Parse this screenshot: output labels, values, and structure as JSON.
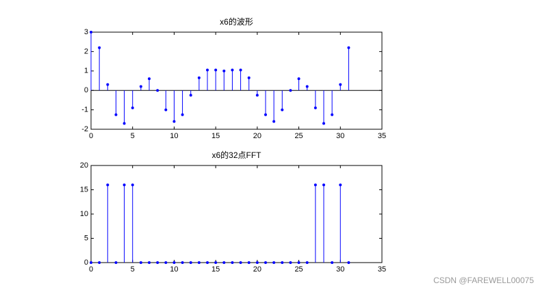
{
  "chart_data": [
    {
      "type": "stem",
      "title": "x6的波形",
      "color": "#0000ff",
      "x": [
        0,
        1,
        2,
        3,
        4,
        5,
        6,
        7,
        8,
        9,
        10,
        11,
        12,
        13,
        14,
        15,
        16,
        17,
        18,
        19,
        20,
        21,
        22,
        23,
        24,
        25,
        26,
        27,
        28,
        29,
        30,
        31
      ],
      "values": [
        3,
        2.2,
        0.3,
        -1.25,
        -1.7,
        -0.9,
        0.2,
        0.6,
        0,
        -1.0,
        -1.6,
        -1.25,
        -0.25,
        0.65,
        1.05,
        1.05,
        1.0,
        1.05,
        1.05,
        0.65,
        -0.25,
        -1.25,
        -1.6,
        -1.0,
        0,
        0.6,
        0.2,
        -0.9,
        -1.7,
        -1.25,
        0.3,
        2.2
      ],
      "xlim": [
        0,
        35
      ],
      "xticks": [
        0,
        5,
        10,
        15,
        20,
        25,
        30,
        35
      ],
      "ylim": [
        -2,
        3
      ],
      "yticks": [
        -2,
        -1,
        0,
        1,
        2,
        3
      ]
    },
    {
      "type": "stem",
      "title": "x6的32点FFT",
      "color": "#0000ff",
      "x": [
        0,
        1,
        2,
        3,
        4,
        5,
        6,
        7,
        8,
        9,
        10,
        11,
        12,
        13,
        14,
        15,
        16,
        17,
        18,
        19,
        20,
        21,
        22,
        23,
        24,
        25,
        26,
        27,
        28,
        29,
        30,
        31
      ],
      "values": [
        0,
        0,
        16,
        0,
        16,
        16,
        0,
        0,
        0,
        0,
        0,
        0,
        0,
        0,
        0,
        0,
        0,
        0,
        0,
        0,
        0,
        0,
        0,
        0,
        0,
        0,
        0,
        16,
        16,
        0,
        16,
        0
      ],
      "xlim": [
        0,
        35
      ],
      "xticks": [
        0,
        5,
        10,
        15,
        20,
        25,
        30,
        35
      ],
      "ylim": [
        0,
        20
      ],
      "yticks": [
        0,
        5,
        10,
        15,
        20
      ]
    }
  ],
  "watermark": "CSDN @FAREWELL00075"
}
